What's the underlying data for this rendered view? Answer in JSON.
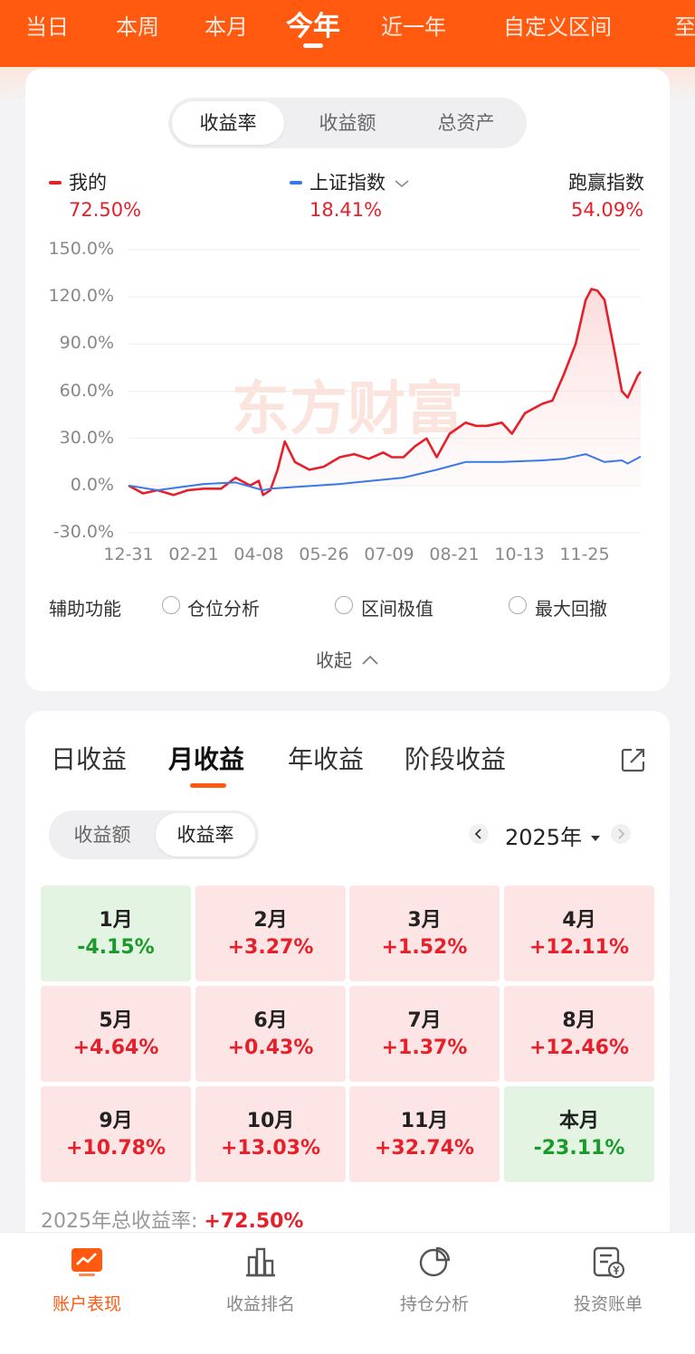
{
  "period_tabs": [
    {
      "label": "当日",
      "active": false
    },
    {
      "label": "本周",
      "active": false
    },
    {
      "label": "本月",
      "active": false
    },
    {
      "label": "今年",
      "active": true
    },
    {
      "label": "近一年",
      "active": false
    },
    {
      "label": "自定义区间",
      "active": false
    },
    {
      "label": "至",
      "active": false
    }
  ],
  "metric_tabs": [
    "收益率",
    "收益额",
    "总资产"
  ],
  "legend": {
    "mine": {
      "label": "我的",
      "value": "72.50%"
    },
    "index": {
      "label": "上证指数",
      "value": "18.41%"
    },
    "beat": {
      "label": "跑赢指数",
      "value": "54.09%"
    }
  },
  "watermark": "东方财富",
  "chart_data": {
    "type": "line",
    "x_ticks": [
      "12-31",
      "02-21",
      "04-08",
      "05-26",
      "07-09",
      "08-21",
      "10-13",
      "11-25"
    ],
    "y_ticks": [
      "150.0%",
      "120.0%",
      "90.0%",
      "60.0%",
      "30.0%",
      "0.0%",
      "-30.0%"
    ],
    "ylim": [
      -30,
      150
    ],
    "series": [
      {
        "name": "我的",
        "color": "#e6202a",
        "points": [
          [
            "12-31",
            0
          ],
          [
            "01-10",
            -5
          ],
          [
            "01-20",
            -3
          ],
          [
            "01-31",
            -6
          ],
          [
            "02-10",
            -3
          ],
          [
            "02-21",
            -2
          ],
          [
            "03-05",
            -2
          ],
          [
            "03-15",
            5
          ],
          [
            "03-25",
            0
          ],
          [
            "03-31",
            3
          ],
          [
            "04-03",
            -6
          ],
          [
            "04-08",
            -3
          ],
          [
            "04-13",
            10
          ],
          [
            "04-18",
            28
          ],
          [
            "04-25",
            15
          ],
          [
            "05-05",
            10
          ],
          [
            "05-15",
            12
          ],
          [
            "05-26",
            18
          ],
          [
            "06-05",
            20
          ],
          [
            "06-15",
            17
          ],
          [
            "06-25",
            21
          ],
          [
            "07-01",
            18
          ],
          [
            "07-09",
            18
          ],
          [
            "07-17",
            25
          ],
          [
            "07-25",
            30
          ],
          [
            "08-01",
            18
          ],
          [
            "08-10",
            33
          ],
          [
            "08-21",
            40
          ],
          [
            "08-28",
            38
          ],
          [
            "09-05",
            38
          ],
          [
            "09-15",
            40
          ],
          [
            "09-22",
            33
          ],
          [
            "10-01",
            46
          ],
          [
            "10-13",
            52
          ],
          [
            "10-20",
            54
          ],
          [
            "10-28",
            71
          ],
          [
            "11-05",
            90
          ],
          [
            "11-12",
            118
          ],
          [
            "11-16",
            125
          ],
          [
            "11-20",
            124
          ],
          [
            "11-25",
            118
          ],
          [
            "12-02",
            85
          ],
          [
            "12-07",
            60
          ],
          [
            "12-11",
            56
          ],
          [
            "12-14",
            62
          ],
          [
            "12-18",
            70
          ],
          [
            "12-20",
            72.5
          ]
        ]
      },
      {
        "name": "上证指数",
        "color": "#3b78e7",
        "points": [
          [
            "12-31",
            0
          ],
          [
            "01-20",
            -3
          ],
          [
            "02-21",
            1
          ],
          [
            "03-15",
            2
          ],
          [
            "04-03",
            -3
          ],
          [
            "04-08",
            -2
          ],
          [
            "05-26",
            1
          ],
          [
            "07-09",
            5
          ],
          [
            "08-01",
            10
          ],
          [
            "08-21",
            15
          ],
          [
            "09-15",
            15
          ],
          [
            "10-13",
            16
          ],
          [
            "10-28",
            17
          ],
          [
            "11-12",
            20
          ],
          [
            "11-25",
            15
          ],
          [
            "12-07",
            16
          ],
          [
            "12-11",
            14
          ],
          [
            "12-20",
            18.41
          ]
        ]
      }
    ]
  },
  "aux": {
    "label": "辅助功能",
    "options": [
      "仓位分析",
      "区间极值",
      "最大回撤"
    ],
    "collapse": "收起"
  },
  "returns_tabs": [
    "日收益",
    "月收益",
    "年收益",
    "阶段收益"
  ],
  "returns_toggle": [
    "收益额",
    "收益率"
  ],
  "year": "2025年",
  "months": [
    {
      "month": "1月",
      "value": "-4.15%",
      "type": "green"
    },
    {
      "month": "2月",
      "value": "+3.27%",
      "type": "red"
    },
    {
      "month": "3月",
      "value": "+1.52%",
      "type": "red"
    },
    {
      "month": "4月",
      "value": "+12.11%",
      "type": "red"
    },
    {
      "month": "5月",
      "value": "+4.64%",
      "type": "red"
    },
    {
      "month": "6月",
      "value": "+0.43%",
      "type": "red"
    },
    {
      "month": "7月",
      "value": "+1.37%",
      "type": "red"
    },
    {
      "month": "8月",
      "value": "+12.46%",
      "type": "red"
    },
    {
      "month": "9月",
      "value": "+10.78%",
      "type": "red"
    },
    {
      "month": "10月",
      "value": "+13.03%",
      "type": "red"
    },
    {
      "month": "11月",
      "value": "+32.74%",
      "type": "red"
    },
    {
      "month": "本月",
      "value": "-23.11%",
      "type": "green"
    }
  ],
  "total": {
    "label": "2025年总收益率:",
    "value": "+72.50%"
  },
  "bottom_nav": [
    {
      "label": "账户表现",
      "active": true
    },
    {
      "label": "收益排名",
      "active": false
    },
    {
      "label": "持仓分析",
      "active": false
    },
    {
      "label": "投资账单",
      "active": false
    }
  ],
  "colors": {
    "brand": "#ff5a10",
    "up": "#e6202a",
    "down": "#1a9a2a",
    "index_line": "#3b78e7"
  }
}
